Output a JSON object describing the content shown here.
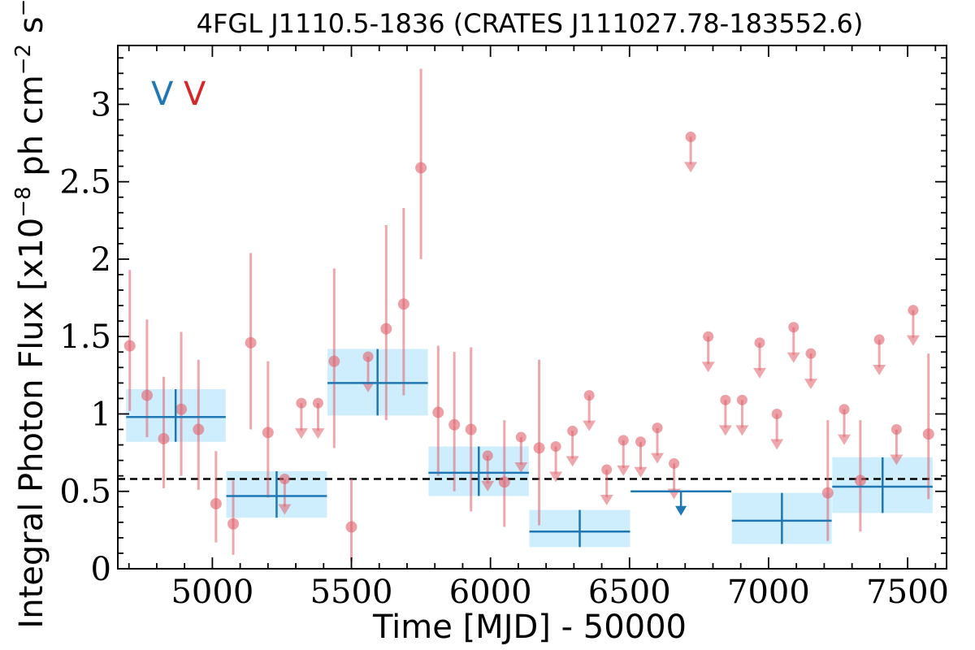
{
  "chart_data": {
    "type": "scatter",
    "title": "4FGL J1110.5-1836 (CRATES J111027.78-183552.6)",
    "xlabel": "Time [MJD] - 50000",
    "ylabel": "Integral Photon Flux [x10^-8 ph cm^-2 s^-1]",
    "xlim": [
      4660,
      7640
    ],
    "ylim": [
      0,
      3.38
    ],
    "xticks": [
      "5000",
      "5500",
      "6000",
      "6500",
      "7000",
      "7500"
    ],
    "xtick_values": [
      5000,
      5500,
      6000,
      6500,
      7000,
      7500
    ],
    "yticks": [
      "0",
      "0.5",
      "1",
      "1.5",
      "2",
      "2.5",
      "3"
    ],
    "ytick_values": [
      0,
      0.5,
      1,
      1.5,
      2,
      2.5,
      3
    ],
    "variability_tags": [
      "V",
      "V"
    ],
    "mean_flux": 0.58,
    "colors": {
      "fine": "#e0606a",
      "coarse": "#1f77b4",
      "band": "#cfeefd",
      "mean_line": "#000000",
      "tag_coarse": "#1f77b4",
      "tag_fine": "#d62728"
    },
    "series": [
      {
        "kind": "fine",
        "detections": [
          {
            "x": 4703,
            "y": 1.44,
            "lo": 1.02,
            "hi": 1.93
          },
          {
            "x": 4765,
            "y": 1.12,
            "lo": 0.85,
            "hi": 1.61
          },
          {
            "x": 4825,
            "y": 0.84,
            "lo": 0.52,
            "hi": 1.24
          },
          {
            "x": 4888,
            "y": 1.03,
            "lo": 0.6,
            "hi": 1.53
          },
          {
            "x": 4950,
            "y": 0.9,
            "lo": 0.51,
            "hi": 1.35
          },
          {
            "x": 5013,
            "y": 0.42,
            "lo": 0.17,
            "hi": 0.76
          },
          {
            "x": 5075,
            "y": 0.29,
            "lo": 0.09,
            "hi": 0.57
          },
          {
            "x": 5138,
            "y": 1.46,
            "lo": 0.9,
            "hi": 2.04
          },
          {
            "x": 5200,
            "y": 0.88,
            "lo": 0.46,
            "hi": 1.34
          },
          {
            "x": 5438,
            "y": 1.34,
            "lo": 0.78,
            "hi": 1.94
          },
          {
            "x": 5500,
            "y": 0.27,
            "lo": 0.05,
            "hi": 0.58
          },
          {
            "x": 5625,
            "y": 1.55,
            "lo": 0.96,
            "hi": 2.22
          },
          {
            "x": 5688,
            "y": 1.71,
            "lo": 1.12,
            "hi": 2.33
          },
          {
            "x": 5750,
            "y": 2.59,
            "lo": 2.0,
            "hi": 3.23
          },
          {
            "x": 5812,
            "y": 1.01,
            "lo": 0.6,
            "hi": 1.44
          },
          {
            "x": 5870,
            "y": 0.93,
            "lo": 0.5,
            "hi": 1.4
          },
          {
            "x": 5930,
            "y": 0.9,
            "lo": 0.37,
            "hi": 1.43
          },
          {
            "x": 6050,
            "y": 0.56,
            "lo": 0.27,
            "hi": 0.96
          },
          {
            "x": 6175,
            "y": 0.78,
            "lo": 0.28,
            "hi": 1.35
          },
          {
            "x": 7213,
            "y": 0.49,
            "lo": 0.18,
            "hi": 0.96
          },
          {
            "x": 7330,
            "y": 0.57,
            "lo": 0.24,
            "hi": 0.96
          },
          {
            "x": 7575,
            "y": 0.87,
            "lo": 0.45,
            "hi": 1.39
          }
        ],
        "upper_limits": [
          {
            "x": 5260,
            "y": 0.58
          },
          {
            "x": 5320,
            "y": 1.07
          },
          {
            "x": 5380,
            "y": 1.07
          },
          {
            "x": 5560,
            "y": 1.37
          },
          {
            "x": 5990,
            "y": 0.73
          },
          {
            "x": 6110,
            "y": 0.85
          },
          {
            "x": 6235,
            "y": 0.79
          },
          {
            "x": 6295,
            "y": 0.89
          },
          {
            "x": 6355,
            "y": 1.12
          },
          {
            "x": 6418,
            "y": 0.64
          },
          {
            "x": 6478,
            "y": 0.83
          },
          {
            "x": 6540,
            "y": 0.82
          },
          {
            "x": 6600,
            "y": 0.91
          },
          {
            "x": 6660,
            "y": 0.68
          },
          {
            "x": 6720,
            "y": 2.79
          },
          {
            "x": 6783,
            "y": 1.5
          },
          {
            "x": 6845,
            "y": 1.09
          },
          {
            "x": 6905,
            "y": 1.09
          },
          {
            "x": 6968,
            "y": 1.46
          },
          {
            "x": 7030,
            "y": 1.0
          },
          {
            "x": 7090,
            "y": 1.56
          },
          {
            "x": 7152,
            "y": 1.39
          },
          {
            "x": 7272,
            "y": 1.03
          },
          {
            "x": 7398,
            "y": 1.48
          },
          {
            "x": 7460,
            "y": 0.9
          },
          {
            "x": 7520,
            "y": 1.67
          }
        ]
      },
      {
        "kind": "coarse",
        "detections": [
          {
            "x0": 4690,
            "x1": 5048,
            "x": 4868,
            "y": 0.98,
            "lo": 0.82,
            "hi": 1.16
          },
          {
            "x0": 5050,
            "x1": 5412,
            "x": 5231,
            "y": 0.47,
            "lo": 0.33,
            "hi": 0.63
          },
          {
            "x0": 5414,
            "x1": 5775,
            "x": 5594,
            "y": 1.2,
            "lo": 0.99,
            "hi": 1.42
          },
          {
            "x0": 5777,
            "x1": 6138,
            "x": 5958,
            "y": 0.62,
            "lo": 0.47,
            "hi": 0.79
          },
          {
            "x0": 6140,
            "x1": 6502,
            "x": 6321,
            "y": 0.24,
            "lo": 0.14,
            "hi": 0.38
          },
          {
            "x0": 6868,
            "x1": 7227,
            "x": 7048,
            "y": 0.31,
            "lo": 0.16,
            "hi": 0.49
          },
          {
            "x0": 7229,
            "x1": 7590,
            "x": 7410,
            "y": 0.53,
            "lo": 0.36,
            "hi": 0.72
          }
        ],
        "upper_limits": [
          {
            "x0": 6504,
            "x1": 6866,
            "x": 6685,
            "y": 0.5
          }
        ]
      }
    ]
  }
}
